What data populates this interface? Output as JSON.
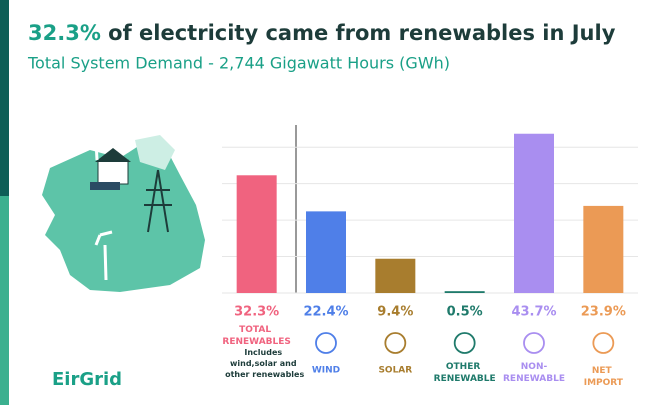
{
  "title_highlight": "32.3%",
  "title_rest": " of electricity came from renewables in July",
  "subtitle": "Total System Demand - 2,744 Gigawatt Hours (GWh)",
  "logo": "EirGrid",
  "chart_data": {
    "type": "bar",
    "categories": [
      "TOTAL RENEWABLES",
      "WIND",
      "SOLAR",
      "OTHER RENEWABLE",
      "NON-RENEWABLE",
      "NET IMPORT"
    ],
    "values": [
      32.3,
      22.4,
      9.4,
      0.5,
      43.7,
      23.9
    ],
    "value_labels": [
      "32.3%",
      "22.4%",
      "9.4%",
      "0.5%",
      "43.7%",
      "23.9%"
    ],
    "colors": [
      "#f0637f",
      "#4f7fe8",
      "#a87d2e",
      "#1f7a6b",
      "#a98ef0",
      "#eb9a55"
    ],
    "note": "Includes wind,solar and other renewables",
    "ylim": [
      0,
      45
    ],
    "yticks": [
      0,
      10,
      20,
      30,
      40
    ],
    "grid": true
  }
}
